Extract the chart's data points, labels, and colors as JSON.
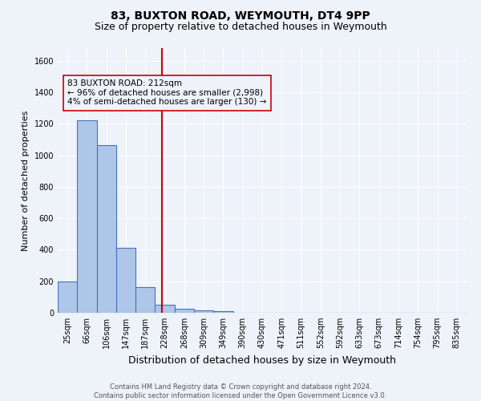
{
  "title1": "83, BUXTON ROAD, WEYMOUTH, DT4 9PP",
  "title2": "Size of property relative to detached houses in Weymouth",
  "xlabel": "Distribution of detached houses by size in Weymouth",
  "ylabel": "Number of detached properties",
  "footer1": "Contains HM Land Registry data © Crown copyright and database right 2024.",
  "footer2": "Contains public sector information licensed under the Open Government Licence v3.0.",
  "bin_labels": [
    "25sqm",
    "66sqm",
    "106sqm",
    "147sqm",
    "187sqm",
    "228sqm",
    "268sqm",
    "309sqm",
    "349sqm",
    "390sqm",
    "430sqm",
    "471sqm",
    "511sqm",
    "552sqm",
    "592sqm",
    "633sqm",
    "673sqm",
    "714sqm",
    "754sqm",
    "795sqm",
    "835sqm"
  ],
  "bar_values": [
    200,
    1220,
    1065,
    410,
    163,
    52,
    24,
    14,
    11,
    0,
    0,
    0,
    0,
    0,
    0,
    0,
    0,
    0,
    0,
    0,
    0
  ],
  "bar_color": "#aec6e8",
  "bar_edgecolor": "#4472c4",
  "bar_linewidth": 0.8,
  "vline_x_index": 4.84,
  "vline_color": "#cc0000",
  "vline_linewidth": 1.5,
  "annotation_text": "83 BUXTON ROAD: 212sqm\n← 96% of detached houses are smaller (2,998)\n4% of semi-detached houses are larger (130) →",
  "annotation_box_edgecolor": "#cc0000",
  "ylim": [
    0,
    1680
  ],
  "yticks": [
    0,
    200,
    400,
    600,
    800,
    1000,
    1200,
    1400,
    1600
  ],
  "background_color": "#eef2f9",
  "grid_color": "#ffffff",
  "title1_fontsize": 10,
  "title2_fontsize": 9,
  "xlabel_fontsize": 9,
  "ylabel_fontsize": 8,
  "tick_fontsize": 7,
  "footer_fontsize": 6,
  "ann_fontsize": 7.5
}
